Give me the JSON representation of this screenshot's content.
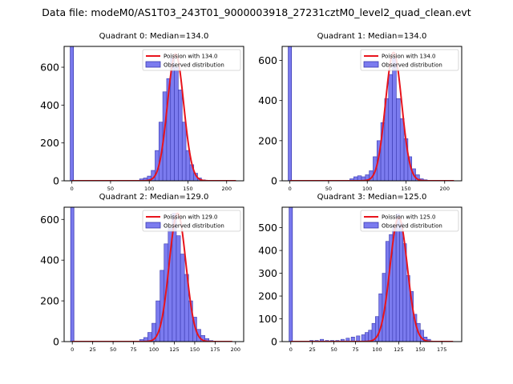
{
  "figure": {
    "suptitle": "Data file: modeM0/AS1T03_243T01_9000003918_27231cztM0_level2_quad_clean.evt"
  },
  "colors": {
    "bar_fill": "#7b7bef",
    "bar_edge": "#3a3ab0",
    "curve": "#e8141c",
    "axis": "#000000"
  },
  "chart_data": [
    {
      "type": "bar",
      "title": "Quadrant 0: Median=134.0",
      "median": 134.0,
      "xlim": [
        -10,
        222
      ],
      "ylim": [
        0,
        710
      ],
      "xticks": [
        0,
        50,
        100,
        150,
        200
      ],
      "yticks": [
        0,
        200,
        400,
        600
      ],
      "bin_width": 5,
      "zero_bar": {
        "x": 0,
        "count": 710
      },
      "bins": [
        [
          90,
          10
        ],
        [
          95,
          15
        ],
        [
          100,
          25
        ],
        [
          105,
          55
        ],
        [
          110,
          160
        ],
        [
          115,
          310
        ],
        [
          120,
          470
        ],
        [
          125,
          540
        ],
        [
          130,
          650
        ],
        [
          135,
          600
        ],
        [
          140,
          480
        ],
        [
          145,
          310
        ],
        [
          150,
          160
        ],
        [
          155,
          85
        ],
        [
          160,
          40
        ],
        [
          165,
          15
        ],
        [
          170,
          5
        ]
      ],
      "series": [
        {
          "name": "Poission with 134.0",
          "kind": "line",
          "lambda": 134.0,
          "peak": 670,
          "sigma": 10.5,
          "x_range": [
            0,
            212
          ]
        },
        {
          "name": "Observed distribution",
          "kind": "bar"
        }
      ]
    },
    {
      "type": "bar",
      "title": "Quadrant 1: Median=134.0",
      "median": 134.0,
      "xlim": [
        -10,
        222
      ],
      "ylim": [
        0,
        670
      ],
      "xticks": [
        0,
        50,
        100,
        150,
        200
      ],
      "yticks": [
        0,
        200,
        400,
        600
      ],
      "bin_width": 5,
      "zero_bar": {
        "x": 0,
        "count": 670
      },
      "bins": [
        [
          80,
          10
        ],
        [
          85,
          20
        ],
        [
          90,
          25
        ],
        [
          95,
          20
        ],
        [
          100,
          30
        ],
        [
          105,
          50
        ],
        [
          110,
          120
        ],
        [
          115,
          200
        ],
        [
          120,
          290
        ],
        [
          125,
          410
        ],
        [
          130,
          530
        ],
        [
          135,
          610
        ],
        [
          140,
          410
        ],
        [
          145,
          310
        ],
        [
          150,
          210
        ],
        [
          155,
          120
        ],
        [
          160,
          60
        ],
        [
          165,
          30
        ],
        [
          170,
          10
        ],
        [
          175,
          5
        ]
      ],
      "series": [
        {
          "name": "Poission with 134.0",
          "kind": "line",
          "lambda": 134.0,
          "peak": 640,
          "sigma": 10.5,
          "x_range": [
            0,
            212
          ]
        },
        {
          "name": "Observed distribution",
          "kind": "bar"
        }
      ]
    },
    {
      "type": "bar",
      "title": "Quadrant 2: Median=129.0",
      "median": 129.0,
      "xlim": [
        -10,
        210
      ],
      "ylim": [
        0,
        660
      ],
      "xticks": [
        0,
        25,
        50,
        75,
        100,
        125,
        150,
        175,
        200
      ],
      "yticks": [
        0,
        200,
        400,
        600
      ],
      "bin_width": 5,
      "zero_bar": {
        "x": 0,
        "count": 660
      },
      "bins": [
        [
          85,
          10
        ],
        [
          90,
          20
        ],
        [
          95,
          45
        ],
        [
          100,
          90
        ],
        [
          105,
          200
        ],
        [
          110,
          350
        ],
        [
          115,
          480
        ],
        [
          120,
          560
        ],
        [
          125,
          630
        ],
        [
          130,
          520
        ],
        [
          135,
          430
        ],
        [
          140,
          330
        ],
        [
          145,
          200
        ],
        [
          150,
          120
        ],
        [
          155,
          60
        ],
        [
          160,
          30
        ],
        [
          165,
          15
        ],
        [
          170,
          5
        ]
      ],
      "series": [
        {
          "name": "Poission with 129.0",
          "kind": "line",
          "lambda": 129.0,
          "peak": 630,
          "sigma": 10.3,
          "x_range": [
            0,
            196
          ]
        },
        {
          "name": "Observed distribution",
          "kind": "bar"
        }
      ]
    },
    {
      "type": "bar",
      "title": "Quadrant 3: Median=125.0",
      "median": 125.0,
      "xlim": [
        -10,
        198
      ],
      "ylim": [
        0,
        590
      ],
      "xticks": [
        0,
        25,
        50,
        75,
        100,
        125,
        150,
        175
      ],
      "yticks": [
        0,
        100,
        200,
        300,
        400,
        500
      ],
      "bin_width": 4,
      "zero_bar": {
        "x": 0,
        "count": 590
      },
      "bins": [
        [
          24,
          5
        ],
        [
          30,
          5
        ],
        [
          36,
          10
        ],
        [
          42,
          5
        ],
        [
          48,
          5
        ],
        [
          54,
          5
        ],
        [
          60,
          10
        ],
        [
          66,
          15
        ],
        [
          72,
          20
        ],
        [
          78,
          25
        ],
        [
          84,
          30
        ],
        [
          88,
          40
        ],
        [
          92,
          50
        ],
        [
          96,
          80
        ],
        [
          100,
          110
        ],
        [
          104,
          210
        ],
        [
          108,
          300
        ],
        [
          112,
          440
        ],
        [
          116,
          470
        ],
        [
          120,
          510
        ],
        [
          124,
          560
        ],
        [
          128,
          520
        ],
        [
          132,
          430
        ],
        [
          136,
          290
        ],
        [
          140,
          220
        ],
        [
          144,
          120
        ],
        [
          148,
          80
        ],
        [
          152,
          50
        ],
        [
          156,
          20
        ],
        [
          160,
          10
        ]
      ],
      "series": [
        {
          "name": "Poission with 125.0",
          "kind": "line",
          "lambda": 125.0,
          "peak": 545,
          "sigma": 10.0,
          "x_range": [
            0,
            188
          ]
        },
        {
          "name": "Observed distribution",
          "kind": "bar"
        }
      ]
    }
  ]
}
